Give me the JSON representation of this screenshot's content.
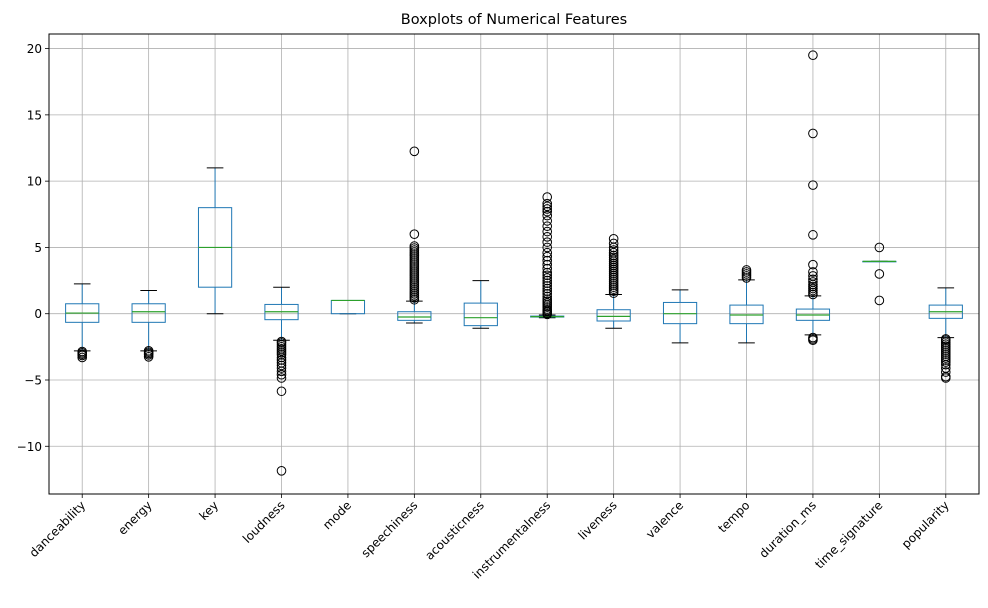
{
  "chart_data": {
    "type": "boxplot",
    "title": "Boxplots of Numerical Features",
    "xlabel": "",
    "ylabel": "",
    "ylim": [
      -13.6,
      21.1
    ],
    "yticks": [
      -10,
      -5,
      0,
      5,
      10,
      15,
      20
    ],
    "ytick_labels": [
      "−10",
      "−5",
      "0",
      "5",
      "10",
      "15",
      "20"
    ],
    "grid": true,
    "colors": {
      "box": "#1f77b4",
      "median": "#2ca02c",
      "grid": "#b0b0b0"
    },
    "boxes": [
      {
        "name": "danceability",
        "q1": -0.65,
        "median": 0.05,
        "q3": 0.75,
        "whislo": -2.8,
        "whishi": 2.25,
        "fliers": [
          -2.85,
          -2.95,
          -3.05,
          -3.15,
          -3.3
        ]
      },
      {
        "name": "energy",
        "q1": -0.65,
        "median": 0.15,
        "q3": 0.75,
        "whislo": -2.8,
        "whishi": 1.75,
        "fliers": [
          -2.8,
          -2.9,
          -3.0,
          -3.1,
          -3.25
        ]
      },
      {
        "name": "key",
        "q1": 2,
        "median": 5,
        "q3": 8,
        "whislo": 0,
        "whishi": 11,
        "fliers": []
      },
      {
        "name": "loudness",
        "q1": -0.45,
        "median": 0.15,
        "q3": 0.7,
        "whislo": -2.0,
        "whishi": 2.0,
        "fliers": [
          -2.1,
          -2.2,
          -2.35,
          -2.5,
          -2.65,
          -2.8,
          -2.95,
          -3.1,
          -3.3,
          -3.5,
          -3.7,
          -3.9,
          -4.1,
          -4.35,
          -4.6,
          -4.85,
          -5.85,
          -11.85
        ]
      },
      {
        "name": "mode",
        "q1": 0,
        "median": 1,
        "q3": 1,
        "whislo": 0,
        "whishi": 1,
        "fliers": []
      },
      {
        "name": "speechiness",
        "q1": -0.5,
        "median": -0.25,
        "q3": 0.15,
        "whislo": -0.7,
        "whishi": 0.95,
        "fliers": [
          1.05,
          1.2,
          1.35,
          1.5,
          1.65,
          1.8,
          1.95,
          2.1,
          2.25,
          2.4,
          2.55,
          2.7,
          2.85,
          3.0,
          3.15,
          3.3,
          3.45,
          3.6,
          3.75,
          3.9,
          4.05,
          4.2,
          4.35,
          4.5,
          4.65,
          4.8,
          4.95,
          5.1,
          6.0,
          12.25
        ]
      },
      {
        "name": "acousticness",
        "q1": -0.9,
        "median": -0.3,
        "q3": 0.8,
        "whislo": -1.1,
        "whishi": 2.5,
        "fliers": []
      },
      {
        "name": "instrumentalness",
        "q1": -0.25,
        "median": -0.22,
        "q3": -0.18,
        "whislo": -0.3,
        "whishi": -0.1,
        "fliers": [
          -0.05,
          0.05,
          0.15,
          0.25,
          0.35,
          0.5,
          0.65,
          0.8,
          0.95,
          1.1,
          1.3,
          1.5,
          1.7,
          1.9,
          2.1,
          2.3,
          2.5,
          2.7,
          2.9,
          3.1,
          3.4,
          3.7,
          4.0,
          4.3,
          4.6,
          5.0,
          5.4,
          5.8,
          6.2,
          6.6,
          7.0,
          7.4,
          7.7,
          7.9,
          8.1,
          8.3,
          8.8
        ]
      },
      {
        "name": "liveness",
        "q1": -0.55,
        "median": -0.2,
        "q3": 0.3,
        "whislo": -1.1,
        "whishi": 1.45,
        "fliers": [
          1.55,
          1.7,
          1.85,
          2.0,
          2.15,
          2.3,
          2.45,
          2.6,
          2.75,
          2.9,
          3.05,
          3.2,
          3.35,
          3.5,
          3.65,
          3.8,
          3.95,
          4.1,
          4.25,
          4.4,
          4.6,
          4.8,
          5.0,
          5.3,
          5.65
        ]
      },
      {
        "name": "valence",
        "q1": -0.75,
        "median": 0.0,
        "q3": 0.85,
        "whislo": -2.2,
        "whishi": 1.8,
        "fliers": []
      },
      {
        "name": "tempo",
        "q1": -0.75,
        "median": -0.1,
        "q3": 0.65,
        "whislo": -2.2,
        "whishi": 2.55,
        "fliers": [
          2.7,
          2.85,
          3.0,
          3.15,
          3.3
        ]
      },
      {
        "name": "duration_ms",
        "q1": -0.5,
        "median": -0.1,
        "q3": 0.35,
        "whislo": -1.6,
        "whishi": 1.35,
        "fliers": [
          -1.8,
          -1.9,
          -2.0,
          1.45,
          1.6,
          1.75,
          1.9,
          2.05,
          2.2,
          2.4,
          2.6,
          2.85,
          3.15,
          3.7,
          5.95,
          9.7,
          13.6,
          19.5
        ]
      },
      {
        "name": "time_signature",
        "q1": 3.95,
        "median": 3.95,
        "q3": 3.95,
        "whislo": 3.95,
        "whishi": 3.95,
        "fliers": [
          1,
          3,
          5
        ]
      },
      {
        "name": "popularity",
        "q1": -0.35,
        "median": 0.15,
        "q3": 0.65,
        "whislo": -1.8,
        "whishi": 1.95,
        "fliers": [
          -1.9,
          -2.0,
          -2.15,
          -2.3,
          -2.45,
          -2.6,
          -2.75,
          -2.9,
          -3.05,
          -3.2,
          -3.35,
          -3.5,
          -3.65,
          -3.85,
          -4.1,
          -4.4,
          -4.75,
          -4.85
        ]
      }
    ]
  }
}
